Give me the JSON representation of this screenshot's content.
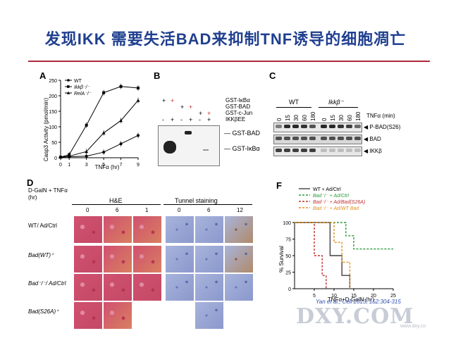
{
  "slide": {
    "title": "发现IKK 需要失活BAD来抑制TNF诱导的细胞凋亡",
    "accent": "#1f3f8f",
    "rule_color": "#b0283a"
  },
  "panelA": {
    "letter": "A",
    "chart_data": {
      "type": "line",
      "ylabel": "Casp3 Activity (pmol/min)",
      "xlabel": "TNFα (hr)",
      "ylim": [
        0,
        250
      ],
      "yticks": [
        "0",
        "50",
        "100",
        "150",
        "200",
        "250"
      ],
      "xticks": [
        "0",
        "1",
        "3",
        "5",
        "7",
        "9"
      ],
      "x": [
        0,
        1,
        3,
        5,
        7,
        9
      ],
      "series": [
        {
          "name": "WT",
          "values": [
            2,
            3,
            5,
            18,
            45,
            72
          ]
        },
        {
          "name": "Ikkβ⁻/⁻",
          "values": [
            2,
            10,
            105,
            210,
            230,
            225
          ]
        },
        {
          "name": "RelA⁻/⁻",
          "values": [
            2,
            5,
            20,
            80,
            120,
            185
          ]
        }
      ]
    }
  },
  "panelB": {
    "letter": "B",
    "rows": [
      "GST-IκBα",
      "GST-BAD",
      "GST-c-Jun",
      "IKKβEE"
    ],
    "signs": [
      [
        "+",
        "+",
        "",
        "",
        "",
        ""
      ],
      [
        "",
        "",
        "+",
        "+",
        "",
        ""
      ],
      [
        "",
        "",
        "",
        "",
        "+",
        "+"
      ],
      [
        "-",
        "+",
        "-",
        "+",
        "-",
        "+"
      ]
    ],
    "bands": [
      "GST-BAD",
      "GST-IκBα"
    ]
  },
  "panelC": {
    "letter": "C",
    "groups": [
      "WT",
      "Ikkβ⁻"
    ],
    "timepoints": [
      "0",
      "15",
      "30",
      "60",
      "180",
      "0",
      "15",
      "30",
      "60",
      "180"
    ],
    "time_label": "TNFα (min)",
    "bands": [
      "P-BAD(S26)",
      "BAD",
      "IKKβ"
    ]
  },
  "panelD": {
    "letter": "D",
    "treatment": "D-GalN + TNFα (hr)",
    "col_groups": [
      "H&E",
      "Tunnel staining"
    ],
    "cols": [
      "0",
      "6",
      "1",
      "0",
      "6",
      "12"
    ],
    "rows": [
      "WT/ Ad/Ctrl",
      "Bad(WT)⁺",
      "Bad⁻/⁻/ Ad/Ctrl",
      "Bad(S26A)⁺"
    ]
  },
  "panelF": {
    "letter": "F",
    "chart_data": {
      "type": "line",
      "ylabel": "% Survival",
      "xlabel": "TNFα+D-GalN (hr)",
      "yticks": [
        "0",
        "25",
        "50",
        "75",
        "100"
      ],
      "xticks": [
        "5",
        "10",
        "15",
        "20",
        "25"
      ],
      "xlim": [
        0,
        25
      ],
      "ylim": [
        0,
        100
      ],
      "series": [
        {
          "name": "WT + Ad/Ctrl",
          "color": "#404040",
          "steps": [
            [
              0,
              100
            ],
            [
              9,
              100
            ],
            [
              9,
              50
            ],
            [
              12,
              50
            ],
            [
              12,
              20
            ],
            [
              14,
              20
            ],
            [
              14,
              0
            ]
          ]
        },
        {
          "name": "Bad⁻/⁻ + Ad/Ctrl",
          "color": "#2a9a3a",
          "steps": [
            [
              0,
              100
            ],
            [
              13,
              100
            ],
            [
              13,
              80
            ],
            [
              15,
              80
            ],
            [
              15,
              60
            ],
            [
              25,
              60
            ]
          ]
        },
        {
          "name": "Bad⁻/⁻ + Ad/Bad(S26A)",
          "color": "#c03030",
          "steps": [
            [
              0,
              100
            ],
            [
              5,
              100
            ],
            [
              5,
              50
            ],
            [
              7,
              50
            ],
            [
              7,
              20
            ],
            [
              8,
              20
            ],
            [
              8,
              0
            ]
          ]
        },
        {
          "name": "Bad⁻/⁻ + Ad/WT Bad",
          "color": "#e09020",
          "steps": [
            [
              0,
              100
            ],
            [
              10,
              100
            ],
            [
              10,
              70
            ],
            [
              12,
              70
            ],
            [
              12,
              40
            ],
            [
              14,
              40
            ],
            [
              14,
              0
            ]
          ]
        }
      ]
    }
  },
  "citation": "Yan et al., Cell 2013, 152:304-315",
  "watermark": "DXY.COM",
  "watermark_small": "www.dxy.cn"
}
